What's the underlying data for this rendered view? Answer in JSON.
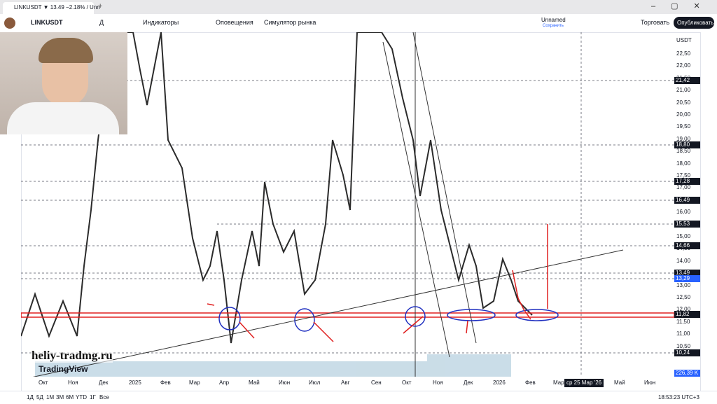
{
  "tab": {
    "title": "LINKUSDT ▼ 13.49 −2.18% / Unn"
  },
  "header": {
    "symbol": "LINKUSDT",
    "interval": "Д",
    "indicators": "Индикаторы",
    "alerts": "Оповещения",
    "replay": "Симулятор рынка",
    "layout_name": "Unnamed",
    "layout_status": "Сохранить",
    "trade": "Торговать",
    "publish": "Опубликовать"
  },
  "price_axis": {
    "currency": "USDT",
    "ticks": [
      "22,50",
      "22,00",
      "21,50",
      "21,00",
      "20,50",
      "20,00",
      "19,50",
      "19,00",
      "18,50",
      "18,00",
      "17,50",
      "17,00",
      "16,50",
      "16,00",
      "15,50",
      "15,00",
      "14,50",
      "14,00",
      "13,50",
      "13,00",
      "12,50",
      "12,00",
      "11,50",
      "11,00",
      "10,50"
    ],
    "markers": [
      "21,42",
      "18,80",
      "17,28",
      "16,49",
      "15,53",
      "14,66",
      "13,49",
      "13,29",
      "11,82",
      "10,24",
      "226,39 K"
    ]
  },
  "time_axis": {
    "labels": [
      "Окт",
      "Ноя",
      "Дек",
      "2025",
      "Фев",
      "Мар",
      "Апр",
      "Май",
      "Июн",
      "Июл",
      "Авг",
      "Сен",
      "Окт",
      "Ноя",
      "Дек",
      "2026",
      "Фев",
      "Мар",
      "Май",
      "Июн"
    ],
    "cursor": "ср 25 Мар '26"
  },
  "watermark": {
    "site": "heliy-tradmg.ru",
    "brand": "TradingView"
  },
  "footer": {
    "ranges": [
      "1Д",
      "5Д",
      "1М",
      "3М",
      "6М",
      "YTD",
      "1Г",
      "Все"
    ],
    "clock": "18:53:23 UTC+3"
  }
}
